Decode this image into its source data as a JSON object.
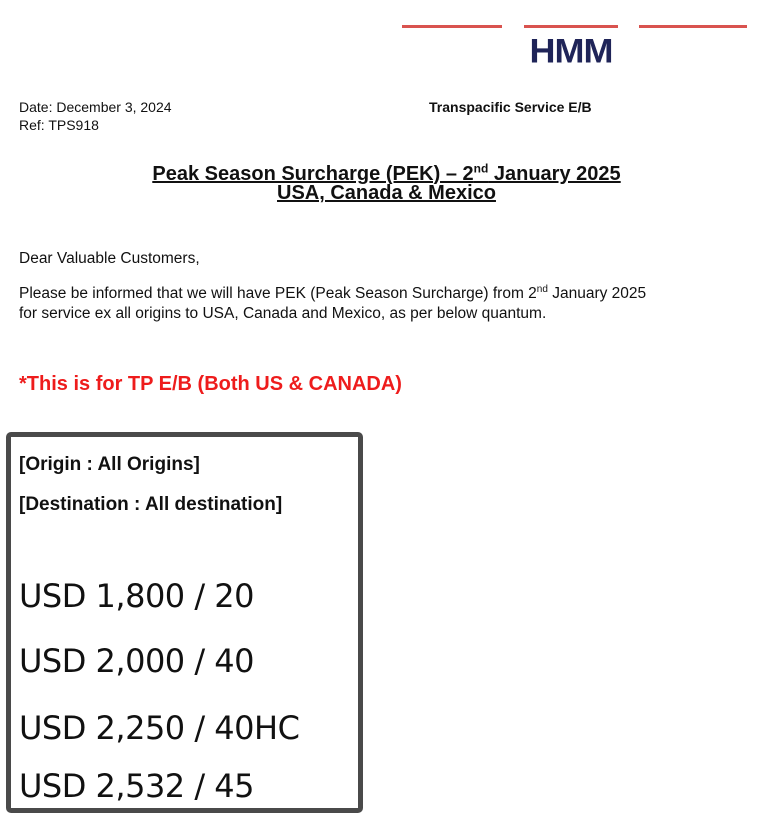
{
  "logo": {
    "text": "HMM",
    "brand_color": "#1f2458",
    "accent_color": "#d9534f"
  },
  "header": {
    "date": "Date: December 3, 2024",
    "ref": "Ref: TPS918",
    "service": "Transpacific Service E/B"
  },
  "title": {
    "line1_prefix": "Peak Season Surcharge (PEK) – 2",
    "line1_sup": "nd",
    "line1_suffix": " January 2025",
    "line2": "USA, Canada & Mexico"
  },
  "body": {
    "greeting": "Dear Valuable Customers,",
    "para_prefix": "Please be informed that we will have PEK (Peak Season Surcharge) from 2",
    "para_sup": "nd",
    "para_suffix": " January 2025",
    "para_line2": "for service ex all origins to USA, Canada and Mexico, as per below quantum."
  },
  "notice": {
    "text": "*This is for TP E/B (Both US & CANADA)",
    "color": "#ee1c1c"
  },
  "rates": {
    "origin": "[Origin : All Origins]",
    "destination": "[Destination : All destination]",
    "items": [
      "USD 1,800 / 20",
      "USD 2,000 / 40",
      "USD 2,250 / 40HC",
      "USD 2,532 / 45"
    ]
  }
}
